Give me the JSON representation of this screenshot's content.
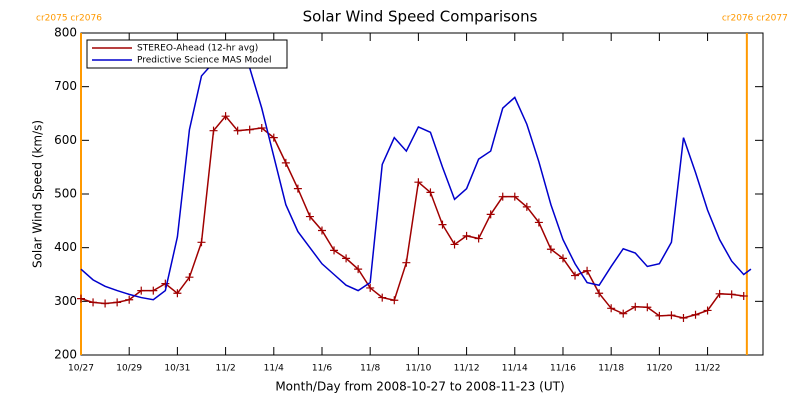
{
  "chart_data": {
    "type": "line",
    "title": "Solar Wind Speed Comparisons",
    "x_label": "Month/Day from 2008-10-27 to 2008-11-23 (UT)",
    "y_label": "Solar Wind Speed (km/s)",
    "xlim": [
      0,
      28.3
    ],
    "ylim": [
      200,
      800
    ],
    "xticks": [
      {
        "value": 0,
        "label": "10/27"
      },
      {
        "value": 2,
        "label": "10/29"
      },
      {
        "value": 4,
        "label": "10/31"
      },
      {
        "value": 6,
        "label": "11/2"
      },
      {
        "value": 8,
        "label": "11/4"
      },
      {
        "value": 10,
        "label": "11/6"
      },
      {
        "value": 12,
        "label": "11/8"
      },
      {
        "value": 14,
        "label": "11/10"
      },
      {
        "value": 16,
        "label": "11/12"
      },
      {
        "value": 18,
        "label": "11/14"
      },
      {
        "value": 20,
        "label": "11/16"
      },
      {
        "value": 22,
        "label": "11/18"
      },
      {
        "value": 24,
        "label": "11/20"
      },
      {
        "value": 26,
        "label": "11/22"
      }
    ],
    "yticks": [
      200,
      300,
      400,
      500,
      600,
      700,
      800
    ],
    "legend": "upper left",
    "series": [
      {
        "name": "STEREO-Ahead (12-hr avg)",
        "color": "#a00000",
        "marker": "+",
        "x": [
          0,
          0.5,
          1,
          1.5,
          2,
          2.5,
          3,
          3.5,
          4,
          4.5,
          5,
          5.5,
          6,
          6.5,
          7,
          7.5,
          8,
          8.5,
          9,
          9.5,
          10,
          10.5,
          11,
          11.5,
          12,
          12.5,
          13,
          13.5,
          14,
          14.5,
          15,
          15.5,
          16,
          16.5,
          17,
          17.5,
          18,
          18.5,
          19,
          19.5,
          20,
          20.5,
          21,
          21.5,
          22,
          22.5,
          23,
          23.5,
          24,
          24.5,
          25,
          25.5,
          26,
          26.5,
          27,
          27.5
        ],
        "values": [
          305,
          298,
          296,
          298,
          303,
          320,
          320,
          333,
          315,
          345,
          410,
          618,
          645,
          618,
          620,
          623,
          605,
          558,
          510,
          458,
          432,
          395,
          380,
          360,
          325,
          307,
          302,
          372,
          522,
          503,
          443,
          406,
          422,
          417,
          462,
          495,
          495,
          476,
          447,
          397,
          380,
          348,
          357,
          315,
          287,
          277,
          290,
          289,
          273,
          274,
          269,
          275,
          283,
          314,
          313,
          310
        ]
      },
      {
        "name": "Predictive Science MAS Model",
        "color": "#0000cc",
        "marker": "none",
        "x": [
          0,
          0.5,
          1,
          1.5,
          2,
          2.5,
          3,
          3.5,
          4,
          4.5,
          5,
          5.5,
          6,
          6.5,
          7,
          7.5,
          8,
          8.5,
          9,
          9.5,
          10,
          10.5,
          11,
          11.5,
          12,
          12.5,
          13,
          13.5,
          14,
          14.5,
          15,
          15.5,
          16,
          16.5,
          17,
          17.5,
          18,
          18.5,
          19,
          19.5,
          20,
          20.5,
          21,
          21.5,
          22,
          22.5,
          23,
          23.5,
          24,
          24.5,
          25,
          25.5,
          26,
          26.5,
          27,
          27.5,
          27.8
        ],
        "values": [
          360,
          340,
          328,
          320,
          313,
          307,
          303,
          320,
          420,
          620,
          720,
          745,
          748,
          750,
          735,
          660,
          570,
          480,
          430,
          400,
          370,
          350,
          330,
          320,
          335,
          555,
          605,
          580,
          625,
          615,
          550,
          490,
          510,
          565,
          580,
          660,
          680,
          630,
          560,
          480,
          415,
          370,
          335,
          330,
          365,
          398,
          390,
          365,
          370,
          410,
          605,
          540,
          470,
          415,
          375,
          350,
          360
        ]
      }
    ],
    "boundaries": [
      {
        "x": 0,
        "label": "cr2075 cr2076"
      },
      {
        "x": 27.63,
        "label": "cr2076 cr2077"
      }
    ],
    "boundary_color": "#ff9900"
  }
}
